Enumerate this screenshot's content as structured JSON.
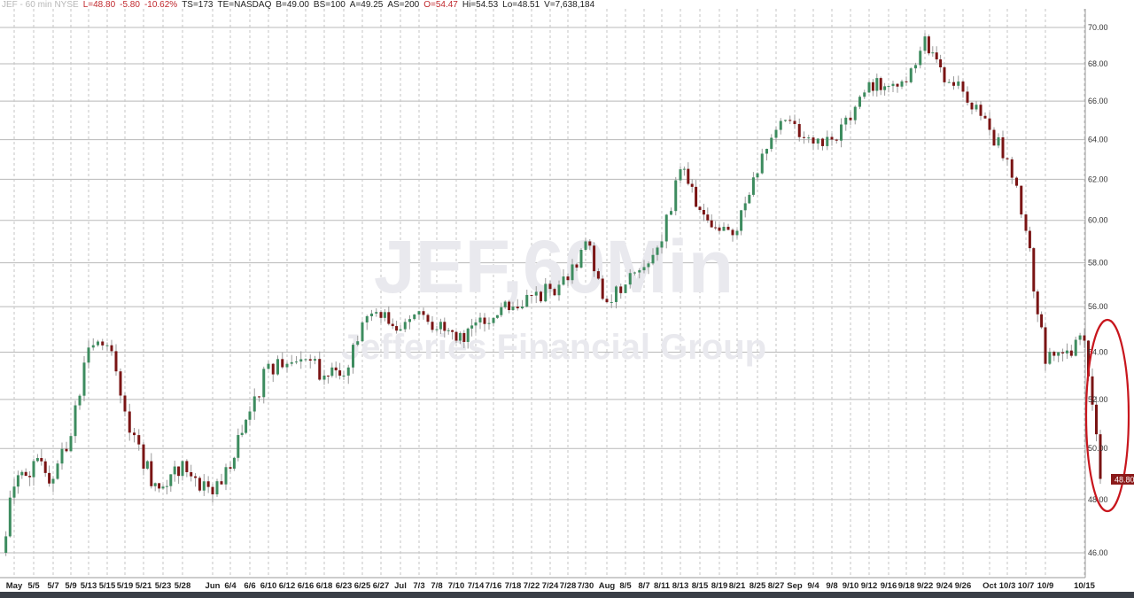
{
  "header": {
    "symbol": "JEF - 60 min NYSE",
    "last": "L=48.80",
    "change": "-5.80",
    "change_pct": "-10.62%",
    "ts": "TS=173",
    "te": "TE=NASDAQ",
    "bid": "B=49.00",
    "bid_size": "BS=100",
    "ask": "A=49.25",
    "ask_size": "AS=200",
    "open": "O=54.47",
    "high": "Hi=54.53",
    "low": "Lo=48.51",
    "volume": "V=7,638,184"
  },
  "watermark": {
    "line1": "JEF,60Min",
    "line2": "Jefferies Financial Group"
  },
  "last_price_label": "48.80",
  "colors": {
    "up": "#3d8c5f",
    "down": "#7a1414",
    "annotation": "#c8161d",
    "last_badge": "#8b1a1a"
  },
  "chart_data": {
    "type": "candlestick",
    "interval": "60 min",
    "y_scale": "log",
    "ylim": [
      45.5,
      71
    ],
    "y_ticks": [
      "46.00",
      "48.00",
      "50.00",
      "52.00",
      "54.00",
      "56.00",
      "58.00",
      "60.00",
      "62.00",
      "64.00",
      "66.00",
      "68.00",
      "70.00"
    ],
    "x_tick_labels": [
      "May",
      "5/5",
      "5/7",
      "5/9",
      "5/13",
      "5/15",
      "5/19",
      "5/21",
      "5/23",
      "5/28",
      "Jun",
      "6/4",
      "6/6",
      "6/10",
      "6/12",
      "6/16",
      "6/18",
      "6/23",
      "6/25",
      "6/27",
      "Jul",
      "7/3",
      "7/8",
      "7/10",
      "7/14",
      "7/16",
      "7/18",
      "7/22",
      "7/24",
      "7/28",
      "7/30",
      "Aug",
      "8/5",
      "8/7",
      "8/11",
      "8/13",
      "8/15",
      "8/19",
      "8/21",
      "8/25",
      "8/27",
      "Sep",
      "9/4",
      "9/8",
      "9/10",
      "9/12",
      "9/16",
      "9/18",
      "9/22",
      "9/24",
      "9/26",
      "Oct",
      "10/3",
      "10/7",
      "10/9",
      "10/15"
    ],
    "first_close": 46.0,
    "approx_close_at_tick": [
      48.5,
      49.5,
      48.8,
      50.5,
      54.2,
      54.3,
      51.5,
      49.2,
      48.5,
      49.5,
      48.2,
      49.2,
      51.5,
      53.5,
      53.5,
      53.7,
      53.0,
      53.0,
      55.3,
      55.5,
      55.0,
      55.8,
      55.0,
      54.5,
      55.3,
      55.5,
      56.0,
      56.5,
      56.8,
      57.2,
      59.0,
      56.2,
      57.0,
      57.8,
      59.0,
      62.5,
      60.5,
      59.5,
      59.5,
      62.3,
      64.5,
      64.8,
      63.8,
      64.0,
      65.0,
      67.0,
      66.8,
      67.0,
      69.5,
      67.0,
      66.5,
      64.5,
      63.0,
      59.5,
      53.5,
      54.5
    ],
    "last_close": 48.8,
    "grid": true,
    "annotation": "red ellipse around final drop"
  }
}
